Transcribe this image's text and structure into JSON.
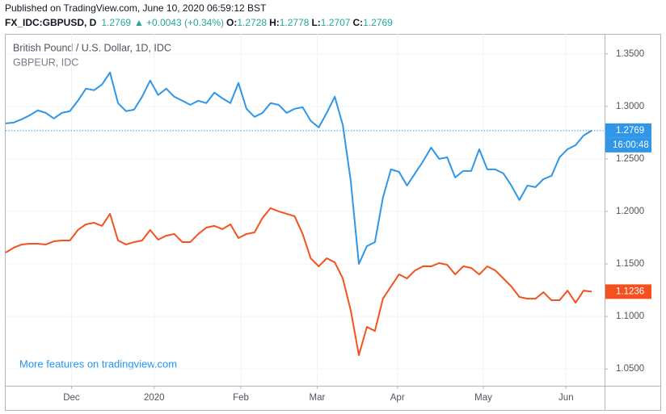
{
  "header": {
    "published": "Published on TradingView.com, June 10, 2020 06:59:12 BST",
    "symbol": "FX_IDC:GBPUSD, D",
    "last": "1.2769",
    "arrow": "▲",
    "change": "+0.0043 (+0.34%)",
    "o_label": "O:",
    "o": "1.2728",
    "h_label": "H:",
    "h": "1.2778",
    "l_label": "L:",
    "l": "1.2707",
    "c_label": "C:",
    "c": "1.2769"
  },
  "chart_data": {
    "type": "line",
    "countdown": "16:00:48",
    "footer": "More features on tradingview.com",
    "categories": [
      null,
      null,
      null,
      null,
      null,
      null,
      null,
      null,
      null,
      null,
      null,
      null,
      null,
      null,
      null,
      null,
      null,
      null,
      null,
      null,
      null,
      null,
      null,
      null,
      null,
      null,
      null,
      null,
      null,
      null,
      null,
      null,
      null,
      null,
      null,
      null,
      null,
      null,
      null,
      null,
      null,
      null,
      null,
      null,
      null,
      null,
      null,
      null,
      null,
      null,
      null,
      null,
      null,
      null,
      null,
      null,
      null,
      null,
      null,
      null,
      null,
      null,
      null,
      null,
      null,
      null,
      null,
      null,
      null,
      null,
      null,
      null,
      null,
      null
    ],
    "xlim": [
      0,
      74.6
    ],
    "xticks": [
      {
        "value": 8.2,
        "label": "Dec"
      },
      {
        "value": 18.5,
        "label": "2020"
      },
      {
        "value": 29.3,
        "label": "Feb"
      },
      {
        "value": 38.8,
        "label": "Mar"
      },
      {
        "value": 48.8,
        "label": "Apr"
      },
      {
        "value": 59.5,
        "label": "May"
      },
      {
        "value": 69.8,
        "label": "Jun"
      }
    ],
    "ylim": [
      1.034,
      1.369
    ],
    "yticks": [
      {
        "value": 1.05,
        "label": "1.0500"
      },
      {
        "value": 1.1,
        "label": "1.1000"
      },
      {
        "value": 1.15,
        "label": "1.1500"
      },
      {
        "value": 1.2,
        "label": "1.2000"
      },
      {
        "value": 1.25,
        "label": "1.2500"
      },
      {
        "value": 1.3,
        "label": "1.3000"
      },
      {
        "value": 1.35,
        "label": "1.3500"
      }
    ],
    "grid": true,
    "series": [
      {
        "name": "British Pound / U.S. Dollar, 1D, IDC",
        "color": "#2f96e8",
        "values": [
          1.2838,
          1.2846,
          1.2877,
          1.2915,
          1.2962,
          1.2938,
          1.2885,
          1.2938,
          1.2954,
          1.3054,
          1.3169,
          1.3154,
          1.3208,
          1.3323,
          1.3031,
          1.2954,
          1.2969,
          1.3092,
          1.3246,
          1.3108,
          1.3169,
          1.3092,
          1.3054,
          1.3015,
          1.3054,
          1.3031,
          1.3131,
          1.3077,
          1.3031,
          1.3223,
          1.2977,
          1.29,
          1.2938,
          1.3031,
          1.3015,
          1.2938,
          1.2977,
          1.2992,
          1.2862,
          1.28,
          1.2938,
          1.3092,
          1.2823,
          1.2285,
          1.15,
          1.1669,
          1.1708,
          1.2131,
          1.24,
          1.2377,
          1.2246,
          1.2362,
          1.2477,
          1.2608,
          1.25,
          1.2515,
          1.2323,
          1.2385,
          1.2385,
          1.2592,
          1.24,
          1.24,
          1.2362,
          1.2246,
          1.2108,
          1.2246,
          1.2231,
          1.2308,
          1.2338,
          1.2515,
          1.2592,
          1.2631,
          1.2723,
          1.2769
        ]
      },
      {
        "name": "GBPEUR, IDC",
        "color": "#f4511e",
        "values": [
          1.1608,
          1.1654,
          1.1685,
          1.1692,
          1.1692,
          1.1685,
          1.1715,
          1.1723,
          1.1723,
          1.1823,
          1.1877,
          1.1892,
          1.1862,
          1.1977,
          1.1723,
          1.1685,
          1.1708,
          1.1723,
          1.1823,
          1.1731,
          1.1769,
          1.1785,
          1.1708,
          1.1708,
          1.1785,
          1.1846,
          1.1862,
          1.1831,
          1.1877,
          1.1746,
          1.1785,
          1.18,
          1.1938,
          1.2031,
          1.2,
          1.1977,
          1.1954,
          1.1785,
          1.1554,
          1.1477,
          1.1554,
          1.1515,
          1.1362,
          1.1054,
          1.0631,
          1.09,
          1.0862,
          1.1169,
          1.1285,
          1.14,
          1.1362,
          1.1438,
          1.1477,
          1.1477,
          1.1508,
          1.1492,
          1.14,
          1.1477,
          1.1462,
          1.14,
          1.1477,
          1.1438,
          1.1362,
          1.1285,
          1.1185,
          1.1169,
          1.1169,
          1.1231,
          1.1154,
          1.1154,
          1.1246,
          1.1131,
          1.1246,
          1.1236
        ]
      }
    ]
  }
}
